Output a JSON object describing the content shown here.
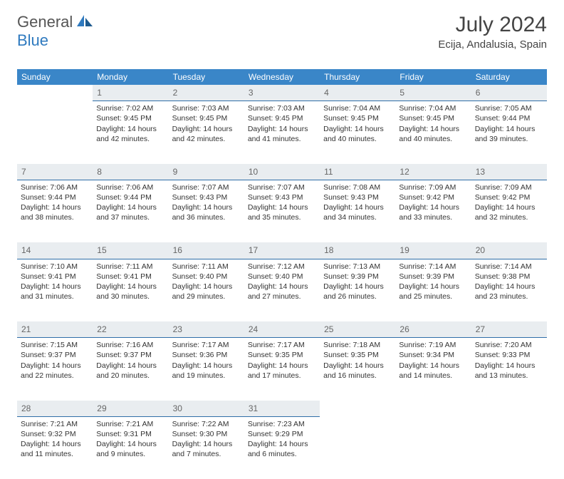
{
  "brand": {
    "part1": "General",
    "part2": "Blue"
  },
  "title": "July 2024",
  "location": "Ecija, Andalusia, Spain",
  "colors": {
    "header_bg": "#3a86c8",
    "header_text": "#ffffff",
    "daynum_bg": "#e9edf0",
    "daynum_border": "#2f6ea8",
    "text": "#333333",
    "brand_gray": "#555555",
    "brand_blue": "#2f7abf"
  },
  "weekdays": [
    "Sunday",
    "Monday",
    "Tuesday",
    "Wednesday",
    "Thursday",
    "Friday",
    "Saturday"
  ],
  "weeks": [
    {
      "nums": [
        "",
        "1",
        "2",
        "3",
        "4",
        "5",
        "6"
      ],
      "cells": [
        {
          "empty": true
        },
        {
          "sunrise": "Sunrise: 7:02 AM",
          "sunset": "Sunset: 9:45 PM",
          "day1": "Daylight: 14 hours",
          "day2": "and 42 minutes."
        },
        {
          "sunrise": "Sunrise: 7:03 AM",
          "sunset": "Sunset: 9:45 PM",
          "day1": "Daylight: 14 hours",
          "day2": "and 42 minutes."
        },
        {
          "sunrise": "Sunrise: 7:03 AM",
          "sunset": "Sunset: 9:45 PM",
          "day1": "Daylight: 14 hours",
          "day2": "and 41 minutes."
        },
        {
          "sunrise": "Sunrise: 7:04 AM",
          "sunset": "Sunset: 9:45 PM",
          "day1": "Daylight: 14 hours",
          "day2": "and 40 minutes."
        },
        {
          "sunrise": "Sunrise: 7:04 AM",
          "sunset": "Sunset: 9:45 PM",
          "day1": "Daylight: 14 hours",
          "day2": "and 40 minutes."
        },
        {
          "sunrise": "Sunrise: 7:05 AM",
          "sunset": "Sunset: 9:44 PM",
          "day1": "Daylight: 14 hours",
          "day2": "and 39 minutes."
        }
      ]
    },
    {
      "nums": [
        "7",
        "8",
        "9",
        "10",
        "11",
        "12",
        "13"
      ],
      "cells": [
        {
          "sunrise": "Sunrise: 7:06 AM",
          "sunset": "Sunset: 9:44 PM",
          "day1": "Daylight: 14 hours",
          "day2": "and 38 minutes."
        },
        {
          "sunrise": "Sunrise: 7:06 AM",
          "sunset": "Sunset: 9:44 PM",
          "day1": "Daylight: 14 hours",
          "day2": "and 37 minutes."
        },
        {
          "sunrise": "Sunrise: 7:07 AM",
          "sunset": "Sunset: 9:43 PM",
          "day1": "Daylight: 14 hours",
          "day2": "and 36 minutes."
        },
        {
          "sunrise": "Sunrise: 7:07 AM",
          "sunset": "Sunset: 9:43 PM",
          "day1": "Daylight: 14 hours",
          "day2": "and 35 minutes."
        },
        {
          "sunrise": "Sunrise: 7:08 AM",
          "sunset": "Sunset: 9:43 PM",
          "day1": "Daylight: 14 hours",
          "day2": "and 34 minutes."
        },
        {
          "sunrise": "Sunrise: 7:09 AM",
          "sunset": "Sunset: 9:42 PM",
          "day1": "Daylight: 14 hours",
          "day2": "and 33 minutes."
        },
        {
          "sunrise": "Sunrise: 7:09 AM",
          "sunset": "Sunset: 9:42 PM",
          "day1": "Daylight: 14 hours",
          "day2": "and 32 minutes."
        }
      ]
    },
    {
      "nums": [
        "14",
        "15",
        "16",
        "17",
        "18",
        "19",
        "20"
      ],
      "cells": [
        {
          "sunrise": "Sunrise: 7:10 AM",
          "sunset": "Sunset: 9:41 PM",
          "day1": "Daylight: 14 hours",
          "day2": "and 31 minutes."
        },
        {
          "sunrise": "Sunrise: 7:11 AM",
          "sunset": "Sunset: 9:41 PM",
          "day1": "Daylight: 14 hours",
          "day2": "and 30 minutes."
        },
        {
          "sunrise": "Sunrise: 7:11 AM",
          "sunset": "Sunset: 9:40 PM",
          "day1": "Daylight: 14 hours",
          "day2": "and 29 minutes."
        },
        {
          "sunrise": "Sunrise: 7:12 AM",
          "sunset": "Sunset: 9:40 PM",
          "day1": "Daylight: 14 hours",
          "day2": "and 27 minutes."
        },
        {
          "sunrise": "Sunrise: 7:13 AM",
          "sunset": "Sunset: 9:39 PM",
          "day1": "Daylight: 14 hours",
          "day2": "and 26 minutes."
        },
        {
          "sunrise": "Sunrise: 7:14 AM",
          "sunset": "Sunset: 9:39 PM",
          "day1": "Daylight: 14 hours",
          "day2": "and 25 minutes."
        },
        {
          "sunrise": "Sunrise: 7:14 AM",
          "sunset": "Sunset: 9:38 PM",
          "day1": "Daylight: 14 hours",
          "day2": "and 23 minutes."
        }
      ]
    },
    {
      "nums": [
        "21",
        "22",
        "23",
        "24",
        "25",
        "26",
        "27"
      ],
      "cells": [
        {
          "sunrise": "Sunrise: 7:15 AM",
          "sunset": "Sunset: 9:37 PM",
          "day1": "Daylight: 14 hours",
          "day2": "and 22 minutes."
        },
        {
          "sunrise": "Sunrise: 7:16 AM",
          "sunset": "Sunset: 9:37 PM",
          "day1": "Daylight: 14 hours",
          "day2": "and 20 minutes."
        },
        {
          "sunrise": "Sunrise: 7:17 AM",
          "sunset": "Sunset: 9:36 PM",
          "day1": "Daylight: 14 hours",
          "day2": "and 19 minutes."
        },
        {
          "sunrise": "Sunrise: 7:17 AM",
          "sunset": "Sunset: 9:35 PM",
          "day1": "Daylight: 14 hours",
          "day2": "and 17 minutes."
        },
        {
          "sunrise": "Sunrise: 7:18 AM",
          "sunset": "Sunset: 9:35 PM",
          "day1": "Daylight: 14 hours",
          "day2": "and 16 minutes."
        },
        {
          "sunrise": "Sunrise: 7:19 AM",
          "sunset": "Sunset: 9:34 PM",
          "day1": "Daylight: 14 hours",
          "day2": "and 14 minutes."
        },
        {
          "sunrise": "Sunrise: 7:20 AM",
          "sunset": "Sunset: 9:33 PM",
          "day1": "Daylight: 14 hours",
          "day2": "and 13 minutes."
        }
      ]
    },
    {
      "nums": [
        "28",
        "29",
        "30",
        "31",
        "",
        "",
        ""
      ],
      "cells": [
        {
          "sunrise": "Sunrise: 7:21 AM",
          "sunset": "Sunset: 9:32 PM",
          "day1": "Daylight: 14 hours",
          "day2": "and 11 minutes."
        },
        {
          "sunrise": "Sunrise: 7:21 AM",
          "sunset": "Sunset: 9:31 PM",
          "day1": "Daylight: 14 hours",
          "day2": "and 9 minutes."
        },
        {
          "sunrise": "Sunrise: 7:22 AM",
          "sunset": "Sunset: 9:30 PM",
          "day1": "Daylight: 14 hours",
          "day2": "and 7 minutes."
        },
        {
          "sunrise": "Sunrise: 7:23 AM",
          "sunset": "Sunset: 9:29 PM",
          "day1": "Daylight: 14 hours",
          "day2": "and 6 minutes."
        },
        {
          "empty": true
        },
        {
          "empty": true
        },
        {
          "empty": true
        }
      ]
    }
  ]
}
